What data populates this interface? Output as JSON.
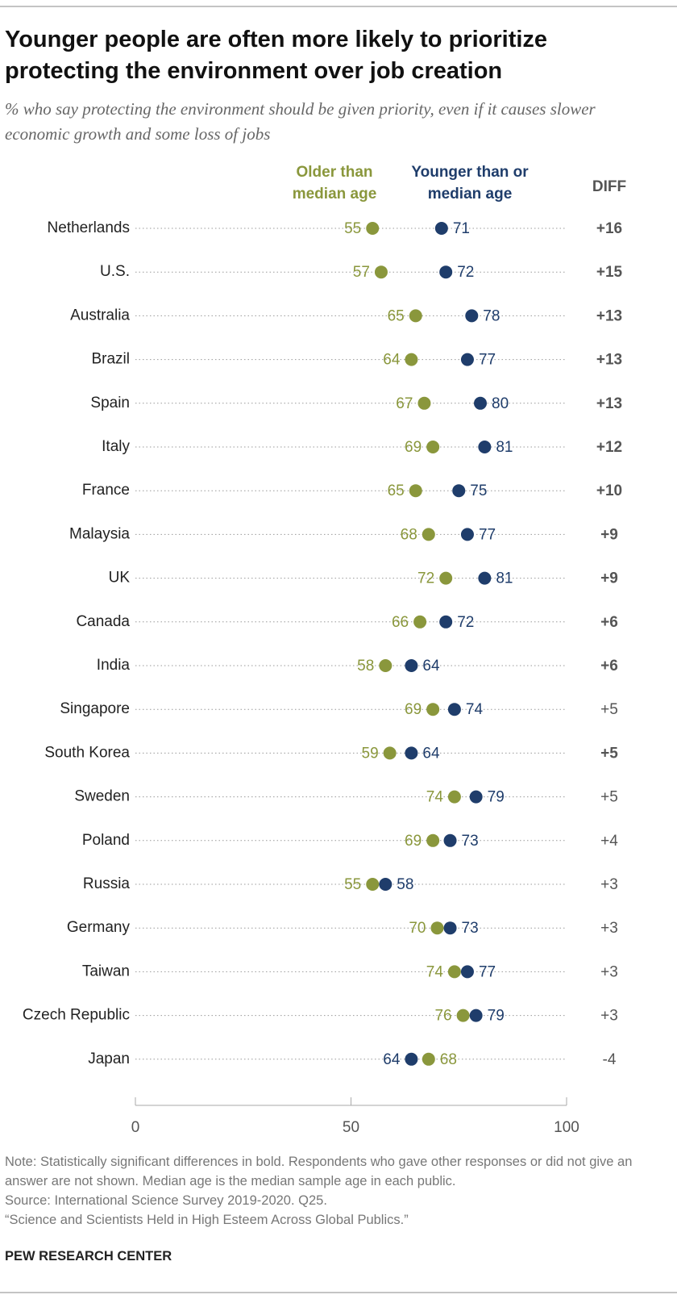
{
  "chart_data": {
    "type": "dot",
    "title": "Younger people are often more likely to prioritize protecting the environment over job creation",
    "subtitle": "% who say protecting the environment should be given priority, even if it causes slower economic growth and some loss of jobs",
    "categories": [
      "Netherlands",
      "U.S.",
      "Australia",
      "Brazil",
      "Spain",
      "Italy",
      "France",
      "Malaysia",
      "UK",
      "Canada",
      "India",
      "Singapore",
      "South Korea",
      "Sweden",
      "Poland",
      "Russia",
      "Germany",
      "Taiwan",
      "Czech Republic",
      "Japan"
    ],
    "series": [
      {
        "name": "Older than median age",
        "color": "#8a973c",
        "values": [
          55,
          57,
          65,
          64,
          67,
          69,
          65,
          68,
          72,
          66,
          58,
          69,
          59,
          74,
          69,
          55,
          70,
          74,
          76,
          68
        ]
      },
      {
        "name": "Younger than or median age",
        "color": "#1f3d6b",
        "values": [
          71,
          72,
          78,
          77,
          80,
          81,
          75,
          77,
          81,
          72,
          64,
          74,
          64,
          79,
          73,
          58,
          73,
          77,
          79,
          64
        ]
      }
    ],
    "diff_header": "DIFF",
    "diff": [
      "+16",
      "+15",
      "+13",
      "+13",
      "+13",
      "+12",
      "+10",
      "+9",
      "+9",
      "+6",
      "+6",
      "+5",
      "+5",
      "+5",
      "+4",
      "+3",
      "+3",
      "+3",
      "+3",
      "-4"
    ],
    "significant": [
      true,
      true,
      true,
      true,
      true,
      true,
      true,
      true,
      true,
      true,
      true,
      false,
      true,
      false,
      false,
      false,
      false,
      false,
      false,
      false
    ],
    "xlim": [
      0,
      100
    ],
    "xticks": [
      0,
      50,
      100
    ],
    "note": "Note: Statistically significant differences in bold. Respondents who gave other responses or did not give an answer are not shown. Median age is the median sample age in each public.",
    "source": "Source: International Science Survey 2019-2020. Q25.",
    "citation": "“Science and Scientists Held in High Esteem Across Global Publics.”",
    "footer": "PEW RESEARCH CENTER"
  }
}
